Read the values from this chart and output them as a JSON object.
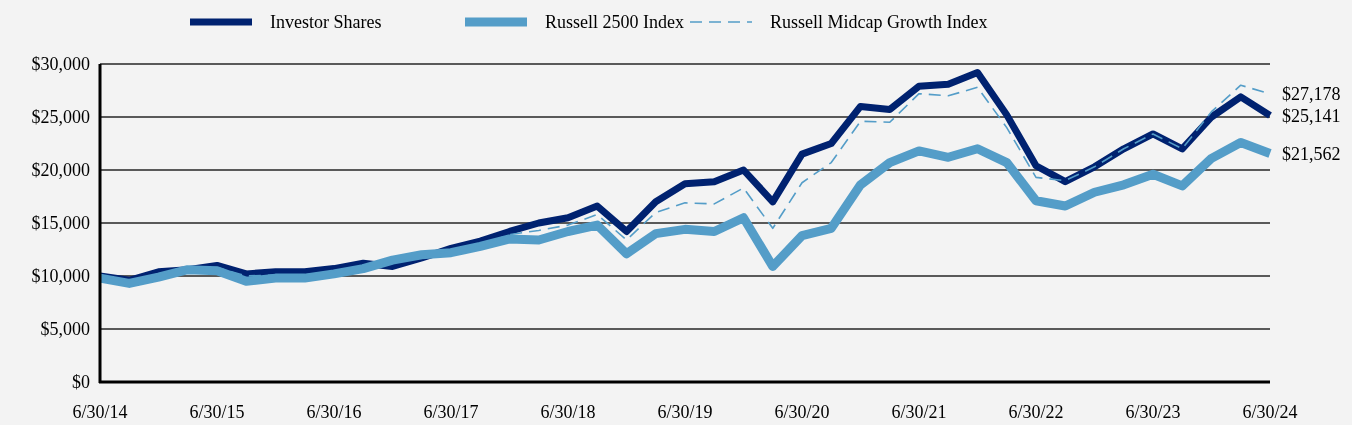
{
  "chart_data": {
    "type": "line",
    "categories": [
      "6/30/14",
      null,
      null,
      null,
      "6/30/15",
      null,
      null,
      null,
      "6/30/16",
      null,
      null,
      null,
      "6/30/17",
      null,
      null,
      null,
      "6/30/18",
      null,
      null,
      null,
      "6/30/19",
      null,
      null,
      null,
      "6/30/20",
      null,
      null,
      null,
      "6/30/21",
      null,
      null,
      null,
      "6/30/22",
      null,
      null,
      null,
      "6/30/23",
      null,
      null,
      null,
      "6/30/24"
    ],
    "series": [
      {
        "name": "Investor Shares",
        "color": "#002270",
        "line_style": "solid",
        "values": [
          10000,
          9600,
          10400,
          10600,
          11000,
          10200,
          10400,
          10400,
          10700,
          11200,
          10900,
          11700,
          12600,
          13300,
          14200,
          15000,
          15500,
          16600,
          14200,
          17000,
          18700,
          18900,
          20000,
          17000,
          21500,
          22500,
          26000,
          25700,
          27900,
          28100,
          29200,
          25200,
          20400,
          18900,
          20300,
          22000,
          23400,
          22000,
          25000,
          26900,
          25141
        ],
        "value_labels": [
          null,
          null,
          null,
          null,
          null,
          null,
          null,
          null,
          null,
          null,
          null,
          null,
          null,
          null,
          null,
          null,
          null,
          null,
          null,
          null,
          null,
          null,
          null,
          null,
          null,
          null,
          null,
          null,
          null,
          null,
          null,
          null,
          null,
          null,
          null,
          null,
          null,
          null,
          null,
          null,
          "$25,141"
        ]
      },
      {
        "name": "Russell 2500 Index",
        "color": "#549dc8",
        "line_style": "solid",
        "values": [
          9800,
          9300,
          9900,
          10600,
          10500,
          9500,
          9800,
          9800,
          10200,
          10700,
          11500,
          12000,
          12200,
          12800,
          13500,
          13400,
          14200,
          14800,
          12100,
          14000,
          14400,
          14200,
          15500,
          10900,
          13800,
          14500,
          18600,
          20700,
          21800,
          21200,
          22000,
          20700,
          17100,
          16600,
          17900,
          18600,
          19600,
          18500,
          21100,
          22600,
          21562
        ],
        "value_labels": [
          null,
          null,
          null,
          null,
          null,
          null,
          null,
          null,
          null,
          null,
          null,
          null,
          null,
          null,
          null,
          null,
          null,
          null,
          null,
          null,
          null,
          null,
          null,
          null,
          null,
          null,
          null,
          null,
          null,
          null,
          null,
          null,
          null,
          null,
          null,
          null,
          null,
          null,
          null,
          null,
          "$21,562"
        ]
      },
      {
        "name": "Russell Midcap Growth Index",
        "color": "#549dc8",
        "line_style": "dashed",
        "values": [
          10000,
          9500,
          10200,
          10700,
          10800,
          10000,
          10100,
          10100,
          10400,
          11000,
          11200,
          11800,
          12400,
          12900,
          13900,
          14300,
          14800,
          15800,
          13400,
          16000,
          16900,
          16800,
          18300,
          14500,
          18800,
          20700,
          24600,
          24500,
          27200,
          27000,
          27800,
          24000,
          19300,
          19000,
          20300,
          22000,
          23400,
          22000,
          25500,
          28000,
          27178
        ],
        "value_labels": [
          null,
          null,
          null,
          null,
          null,
          null,
          null,
          null,
          null,
          null,
          null,
          null,
          null,
          null,
          null,
          null,
          null,
          null,
          null,
          null,
          null,
          null,
          null,
          null,
          null,
          null,
          null,
          null,
          null,
          null,
          null,
          null,
          null,
          null,
          null,
          null,
          null,
          null,
          null,
          null,
          "$27,178"
        ]
      }
    ],
    "ylim": [
      0,
      30000
    ],
    "yticks": [
      {
        "value": 0,
        "label": "$0"
      },
      {
        "value": 5000,
        "label": "$5,000"
      },
      {
        "value": 10000,
        "label": "$10,000"
      },
      {
        "value": 15000,
        "label": "$15,000"
      },
      {
        "value": 20000,
        "label": "$20,000"
      },
      {
        "value": 25000,
        "label": "$25,000"
      },
      {
        "value": 30000,
        "label": "$30,000"
      }
    ],
    "grid": "y",
    "legend": "top",
    "marker": "none"
  }
}
